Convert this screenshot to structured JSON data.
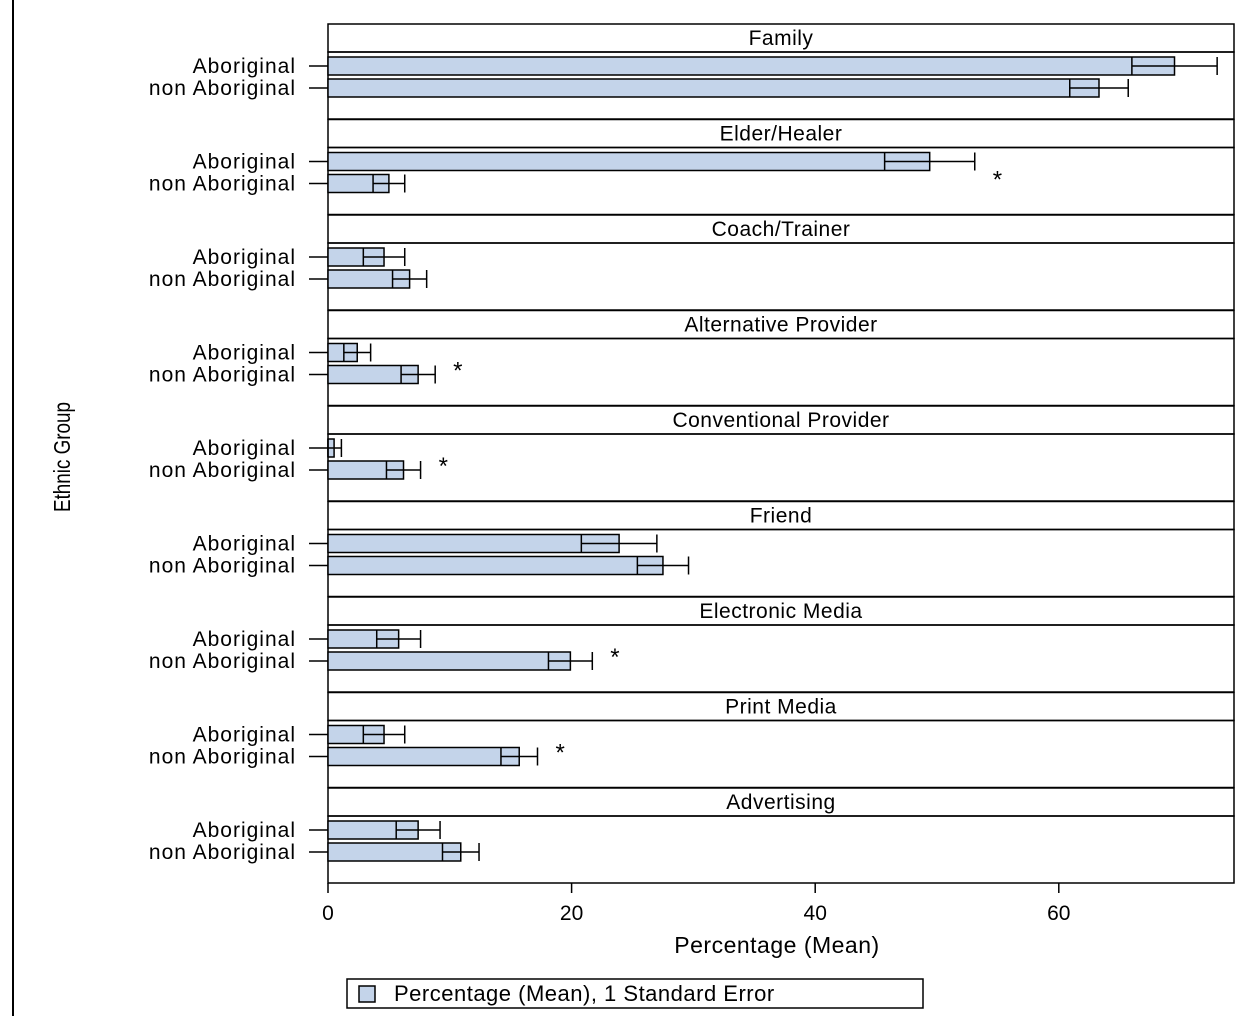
{
  "chart_data": {
    "type": "bar",
    "orientation": "horizontal",
    "panel_layout": "stacked panels, one per source, shared x axis",
    "ylabel": "Ethnic Group",
    "xlabel": "Percentage (Mean)",
    "xlim": [
      0,
      74
    ],
    "x_ticks": [
      0,
      20,
      40,
      60
    ],
    "groups": [
      "Aboriginal",
      "non Aboriginal"
    ],
    "legend": {
      "label": "Percentage (Mean), 1 Standard Error",
      "position": "bottom"
    },
    "bar_color": "#c4d4ea",
    "grid": false,
    "significance_marker": "*",
    "panels": [
      {
        "title": "Family",
        "significant": false,
        "bars": [
          {
            "group": "Aboriginal",
            "mean": 69.5,
            "se": 3.5
          },
          {
            "group": "non Aboriginal",
            "mean": 63.3,
            "se": 2.4
          }
        ]
      },
      {
        "title": "Elder/Healer",
        "significant": true,
        "bars": [
          {
            "group": "Aboriginal",
            "mean": 49.4,
            "se": 3.7
          },
          {
            "group": "non Aboriginal",
            "mean": 5.0,
            "se": 1.3
          }
        ]
      },
      {
        "title": "Coach/Trainer",
        "significant": false,
        "bars": [
          {
            "group": "Aboriginal",
            "mean": 4.6,
            "se": 1.7
          },
          {
            "group": "non Aboriginal",
            "mean": 6.7,
            "se": 1.4
          }
        ]
      },
      {
        "title": "Alternative Provider",
        "significant": true,
        "bars": [
          {
            "group": "Aboriginal",
            "mean": 2.4,
            "se": 1.1
          },
          {
            "group": "non Aboriginal",
            "mean": 7.4,
            "se": 1.4
          }
        ]
      },
      {
        "title": "Conventional Provider",
        "significant": true,
        "bars": [
          {
            "group": "Aboriginal",
            "mean": 0.5,
            "se": 0.6
          },
          {
            "group": "non Aboriginal",
            "mean": 6.2,
            "se": 1.4
          }
        ]
      },
      {
        "title": "Friend",
        "significant": false,
        "bars": [
          {
            "group": "Aboriginal",
            "mean": 23.9,
            "se": 3.1
          },
          {
            "group": "non Aboriginal",
            "mean": 27.5,
            "se": 2.1
          }
        ]
      },
      {
        "title": "Electronic Media",
        "significant": true,
        "bars": [
          {
            "group": "Aboriginal",
            "mean": 5.8,
            "se": 1.8
          },
          {
            "group": "non Aboriginal",
            "mean": 19.9,
            "se": 1.8
          }
        ]
      },
      {
        "title": "Print Media",
        "significant": true,
        "bars": [
          {
            "group": "Aboriginal",
            "mean": 4.6,
            "se": 1.7
          },
          {
            "group": "non Aboriginal",
            "mean": 15.7,
            "se": 1.5
          }
        ]
      },
      {
        "title": "Advertising",
        "significant": false,
        "bars": [
          {
            "group": "Aboriginal",
            "mean": 7.4,
            "se": 1.8
          },
          {
            "group": "non Aboriginal",
            "mean": 10.9,
            "se": 1.5
          }
        ]
      }
    ]
  }
}
